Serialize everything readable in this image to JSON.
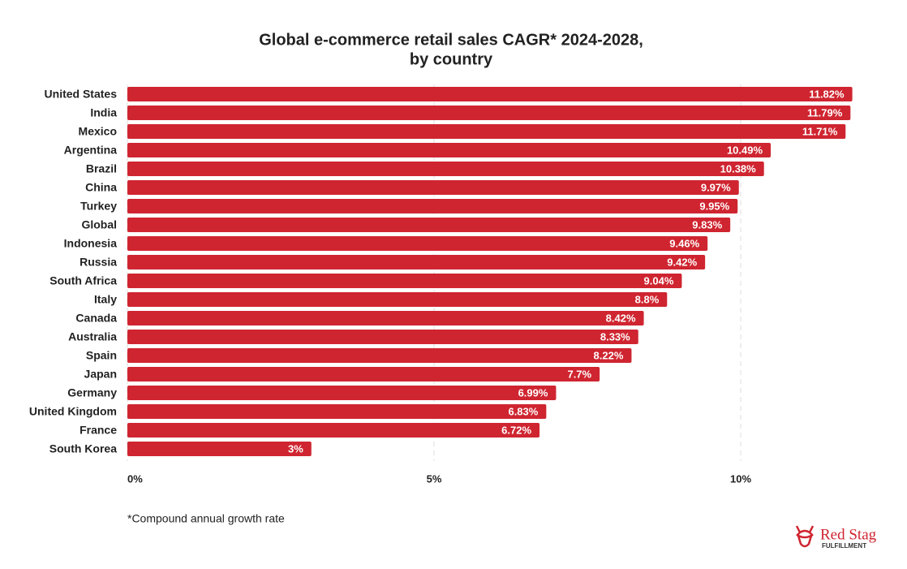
{
  "chart_data": {
    "type": "barh",
    "title": [
      "Global e-commerce retail sales CAGR* 2024-2028,",
      "by country"
    ],
    "categories": [
      "United States",
      "India",
      "Mexico",
      "Argentina",
      "Brazil",
      "China",
      "Turkey",
      "Global",
      "Indonesia",
      "Russia",
      "South Africa",
      "Italy",
      "Canada",
      "Australia",
      "Spain",
      "Japan",
      "Germany",
      "United Kingdom",
      "France",
      "South Korea"
    ],
    "values": [
      11.82,
      11.79,
      11.71,
      10.49,
      10.38,
      9.97,
      9.95,
      9.83,
      9.46,
      9.42,
      9.04,
      8.8,
      8.42,
      8.33,
      8.22,
      7.7,
      6.99,
      6.83,
      6.72,
      3
    ],
    "value_labels": [
      "11.82%",
      "11.79%",
      "11.71%",
      "10.49%",
      "10.38%",
      "9.97%",
      "9.95%",
      "9.83%",
      "9.46%",
      "9.42%",
      "9.04%",
      "8.8%",
      "8.42%",
      "8.33%",
      "8.22%",
      "7.7%",
      "6.99%",
      "6.83%",
      "6.72%",
      "3%"
    ],
    "color": "#cf2530",
    "xlim": [
      0,
      12
    ],
    "xticks": [
      {
        "value": 0,
        "label": "0%"
      },
      {
        "value": 5,
        "label": "5%"
      },
      {
        "value": 10,
        "label": "10%"
      }
    ],
    "grid": true
  },
  "footnote": "*Compound annual growth rate",
  "logo": {
    "name": "Red Stag",
    "tagline": "FULFILLMENT"
  }
}
